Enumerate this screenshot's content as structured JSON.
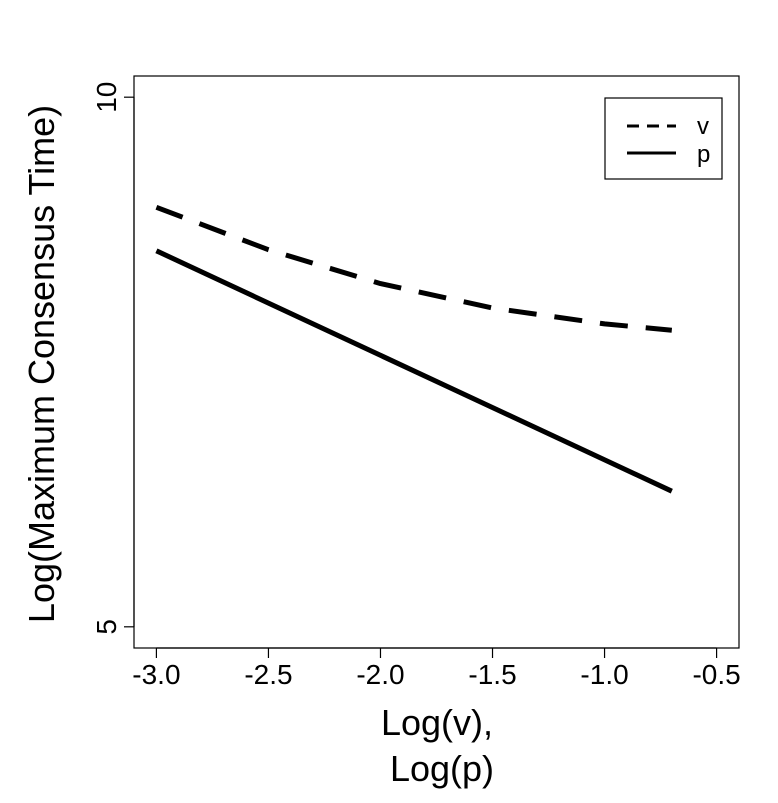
{
  "chart_data": {
    "type": "line",
    "title": "",
    "xlabel": "Log(v),",
    "xlabel_line2": "Log(p)",
    "ylabel": "Log(Maximum Consensus Time)",
    "xlim": [
      -3.1,
      -0.4
    ],
    "ylim": [
      4.8,
      10.2
    ],
    "x_ticks": [
      -3.0,
      -2.5,
      -2.0,
      -1.5,
      -1.0,
      -0.5
    ],
    "x_tick_labels": [
      "-3.0",
      "-2.5",
      "-2.0",
      "-1.5",
      "-1.0",
      "-0.5"
    ],
    "y_ticks": [
      5,
      10
    ],
    "y_tick_labels": [
      "5",
      "10"
    ],
    "grid": false,
    "legend_position": "top-right",
    "series": [
      {
        "name": "v",
        "style": "dashed",
        "color": "#000000",
        "x": [
          -3.0,
          -2.5,
          -2.0,
          -1.5,
          -1.0,
          -0.7
        ],
        "y": [
          8.96,
          8.56,
          8.24,
          8.01,
          7.86,
          7.8
        ]
      },
      {
        "name": "p",
        "style": "solid",
        "color": "#000000",
        "x": [
          -3.0,
          -0.7
        ],
        "y": [
          8.55,
          6.28
        ]
      }
    ]
  }
}
